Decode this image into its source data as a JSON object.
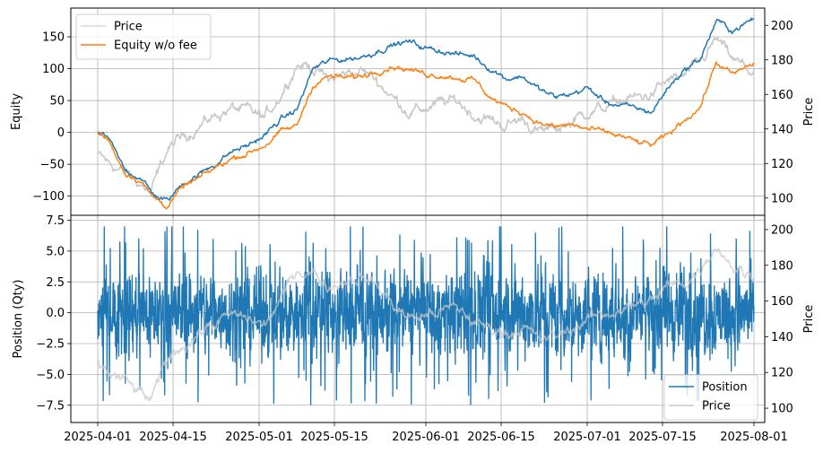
{
  "chart_data": [
    {
      "type": "line",
      "panel": "top",
      "ylabel": "Equity",
      "ylabel_right": "Price",
      "xlim": [
        "2025-03-27",
        "2025-08-03"
      ],
      "ylim": [
        -130,
        195
      ],
      "ylim_right": [
        90,
        210
      ],
      "yticks": [
        -100,
        -50,
        0,
        50,
        100,
        150
      ],
      "yticks_right": [
        100,
        120,
        140,
        160,
        180,
        200
      ],
      "grid": true,
      "legend": {
        "position": "top-left",
        "entries": [
          "Price",
          "Equity w/o fee"
        ]
      },
      "series": [
        {
          "name": "Price",
          "axis": "right",
          "color": "#c8c8c8",
          "x": [
            "2025-04-01",
            "2025-04-03",
            "2025-04-06",
            "2025-04-09",
            "2025-04-11",
            "2025-04-14",
            "2025-04-17",
            "2025-04-20",
            "2025-04-23",
            "2025-04-26",
            "2025-04-29",
            "2025-05-02",
            "2025-05-05",
            "2025-05-08",
            "2025-05-11",
            "2025-05-14",
            "2025-05-17",
            "2025-05-20",
            "2025-05-23",
            "2025-05-26",
            "2025-05-29",
            "2025-06-01",
            "2025-06-04",
            "2025-06-07",
            "2025-06-10",
            "2025-06-13",
            "2025-06-16",
            "2025-06-19",
            "2025-06-22",
            "2025-06-25",
            "2025-06-28",
            "2025-07-01",
            "2025-07-04",
            "2025-07-07",
            "2025-07-10",
            "2025-07-13",
            "2025-07-16",
            "2025-07-19",
            "2025-07-22",
            "2025-07-25",
            "2025-07-28",
            "2025-08-01"
          ],
          "values": [
            125,
            120,
            115,
            108,
            104,
            128,
            136,
            142,
            148,
            152,
            150,
            146,
            160,
            178,
            176,
            168,
            172,
            174,
            168,
            158,
            150,
            152,
            155,
            156,
            148,
            145,
            142,
            146,
            138,
            140,
            144,
            150,
            152,
            156,
            158,
            160,
            168,
            170,
            178,
            192,
            180,
            172
          ]
        },
        {
          "name": "Equity",
          "axis": "left",
          "color": "#1f77b4",
          "x": [
            "2025-04-01",
            "2025-04-03",
            "2025-04-06",
            "2025-04-09",
            "2025-04-11",
            "2025-04-14",
            "2025-04-17",
            "2025-04-20",
            "2025-04-23",
            "2025-04-26",
            "2025-04-29",
            "2025-05-02",
            "2025-05-05",
            "2025-05-08",
            "2025-05-11",
            "2025-05-14",
            "2025-05-17",
            "2025-05-20",
            "2025-05-23",
            "2025-05-26",
            "2025-05-29",
            "2025-06-01",
            "2025-06-04",
            "2025-06-07",
            "2025-06-10",
            "2025-06-13",
            "2025-06-16",
            "2025-06-19",
            "2025-06-22",
            "2025-06-25",
            "2025-06-28",
            "2025-07-01",
            "2025-07-04",
            "2025-07-07",
            "2025-07-10",
            "2025-07-13",
            "2025-07-16",
            "2025-07-19",
            "2025-07-22",
            "2025-07-25",
            "2025-07-28",
            "2025-08-01"
          ],
          "values": [
            0,
            -10,
            -60,
            -70,
            -95,
            -108,
            -78,
            -65,
            -48,
            -30,
            -20,
            -5,
            20,
            35,
            100,
            112,
            115,
            118,
            128,
            138,
            142,
            132,
            128,
            122,
            120,
            100,
            85,
            88,
            68,
            55,
            60,
            70,
            50,
            42,
            38,
            32,
            70,
            98,
            115,
            175,
            160,
            178
          ]
        },
        {
          "name": "Equity w/o fee",
          "axis": "left",
          "color": "#ff7f0e",
          "x": [
            "2025-04-01",
            "2025-04-03",
            "2025-04-06",
            "2025-04-09",
            "2025-04-11",
            "2025-04-14",
            "2025-04-17",
            "2025-04-20",
            "2025-04-23",
            "2025-04-26",
            "2025-04-29",
            "2025-05-02",
            "2025-05-05",
            "2025-05-08",
            "2025-05-11",
            "2025-05-14",
            "2025-05-17",
            "2025-05-20",
            "2025-05-23",
            "2025-05-26",
            "2025-05-29",
            "2025-06-01",
            "2025-06-04",
            "2025-06-07",
            "2025-06-10",
            "2025-06-13",
            "2025-06-16",
            "2025-06-19",
            "2025-06-22",
            "2025-06-25",
            "2025-06-28",
            "2025-07-01",
            "2025-07-04",
            "2025-07-07",
            "2025-07-10",
            "2025-07-13",
            "2025-07-16",
            "2025-07-19",
            "2025-07-22",
            "2025-07-25",
            "2025-07-28",
            "2025-08-01"
          ],
          "values": [
            0,
            -12,
            -62,
            -75,
            -100,
            -115,
            -85,
            -72,
            -55,
            -40,
            -32,
            -20,
            0,
            10,
            75,
            88,
            85,
            88,
            98,
            105,
            98,
            92,
            90,
            86,
            82,
            55,
            40,
            32,
            15,
            8,
            12,
            5,
            0,
            -5,
            -15,
            -20,
            -5,
            20,
            40,
            110,
            90,
            108
          ]
        }
      ]
    },
    {
      "type": "line",
      "panel": "bottom",
      "ylabel": "Position (Qty)",
      "ylabel_right": "Price",
      "xlim": [
        "2025-03-27",
        "2025-08-03"
      ],
      "ylim": [
        -8.9,
        7.9
      ],
      "ylim_right": [
        92,
        208
      ],
      "yticks": [
        -7.5,
        -5.0,
        -2.5,
        0.0,
        2.5,
        5.0,
        7.5
      ],
      "yticks_right": [
        100,
        120,
        140,
        160,
        180,
        200
      ],
      "xticks": [
        "2025-04-01",
        "2025-04-15",
        "2025-05-01",
        "2025-05-15",
        "2025-06-01",
        "2025-06-15",
        "2025-07-01",
        "2025-07-15",
        "2025-08-01"
      ],
      "grid": true,
      "legend": {
        "position": "bottom-right",
        "entries": [
          "Position",
          "Price"
        ]
      },
      "series": [
        {
          "name": "Position",
          "axis": "left",
          "color": "#1f77b4",
          "note": "high-frequency oscillation between about -8.2 and 7.0 throughout the period",
          "range": [
            -8.2,
            7.0
          ]
        },
        {
          "name": "Price",
          "axis": "right",
          "color": "#c8c8c8",
          "x": [
            "2025-04-01",
            "2025-04-03",
            "2025-04-06",
            "2025-04-09",
            "2025-04-11",
            "2025-04-14",
            "2025-04-17",
            "2025-04-20",
            "2025-04-23",
            "2025-04-26",
            "2025-04-29",
            "2025-05-02",
            "2025-05-05",
            "2025-05-08",
            "2025-05-11",
            "2025-05-14",
            "2025-05-17",
            "2025-05-20",
            "2025-05-23",
            "2025-05-26",
            "2025-05-29",
            "2025-06-01",
            "2025-06-04",
            "2025-06-07",
            "2025-06-10",
            "2025-06-13",
            "2025-06-16",
            "2025-06-19",
            "2025-06-22",
            "2025-06-25",
            "2025-06-28",
            "2025-07-01",
            "2025-07-04",
            "2025-07-07",
            "2025-07-10",
            "2025-07-13",
            "2025-07-16",
            "2025-07-19",
            "2025-07-22",
            "2025-07-25",
            "2025-07-28",
            "2025-08-01"
          ],
          "values": [
            125,
            120,
            115,
            108,
            104,
            128,
            136,
            142,
            148,
            152,
            150,
            146,
            160,
            178,
            176,
            168,
            172,
            174,
            168,
            158,
            150,
            152,
            155,
            156,
            148,
            145,
            142,
            146,
            138,
            140,
            144,
            150,
            152,
            156,
            158,
            160,
            168,
            170,
            178,
            192,
            180,
            172
          ]
        }
      ]
    }
  ]
}
